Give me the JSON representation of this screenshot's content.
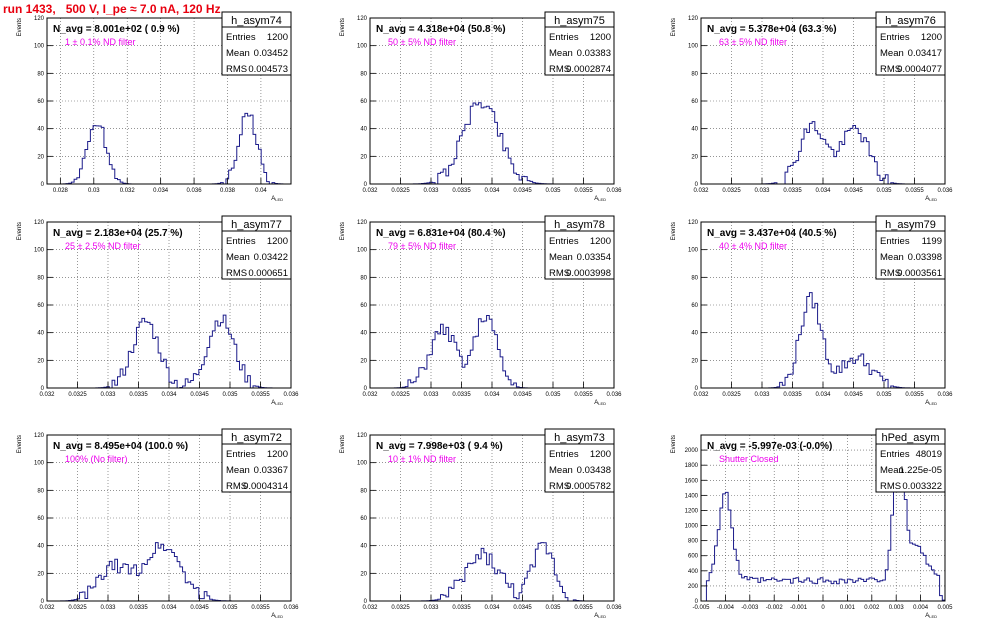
{
  "page_title": "run 1433,   500 V, I_pe ≈ 7.0 nA, 120 Hz",
  "colors": {
    "title": "#e8000f",
    "histogram": "#1b1b8a",
    "filter_text": "#ee00ee",
    "frame": "#000000",
    "grid": "#555555"
  },
  "y_axis_label": "Events",
  "x_axis_label": "A",
  "x_axis_label_sub": "LED",
  "stats_labels": [
    "Entries",
    "Mean",
    "RMS"
  ],
  "chart_data": [
    {
      "type": "histogram",
      "name": "h_asym74",
      "navg_text": "N_avg = 8.001e+02 ( 0.9 %)",
      "filter_text": "1 ± 0.1% ND filter",
      "stats": {
        "entries": "1200",
        "mean": "0.03452",
        "rms": "0.004573"
      },
      "xlim": [
        0.0272,
        0.0418
      ],
      "ylim": [
        0,
        120
      ],
      "xticks": [
        "0.028",
        "0.03",
        "0.032",
        "0.034",
        "0.036",
        "0.038",
        "0.04"
      ],
      "yticks": [
        "20",
        "40",
        "60",
        "80",
        "100",
        "120"
      ],
      "peaks": [
        {
          "c": 0.0302,
          "s": 0.00055,
          "a": 45
        },
        {
          "c": 0.0392,
          "s": 0.00055,
          "a": 50
        }
      ],
      "noise": 5,
      "seed": 74
    },
    {
      "type": "histogram",
      "name": "h_asym75",
      "navg_text": "N_avg = 4.318e+04 (50.8 %)",
      "filter_text": "50 ± 5% ND filter",
      "stats": {
        "entries": "1200",
        "mean": "0.03383",
        "rms": "0.0002874"
      },
      "xlim": [
        0.032,
        0.036
      ],
      "ylim": [
        0,
        120
      ],
      "xticks": [
        "0.032",
        "0.0325",
        "0.033",
        "0.0335",
        "0.034",
        "0.0345",
        "0.035",
        "0.0355",
        "0.036"
      ],
      "yticks": [
        "20",
        "40",
        "60",
        "80",
        "100",
        "120"
      ],
      "peaks": [
        {
          "c": 0.03383,
          "s": 0.0003,
          "a": 60
        }
      ],
      "noise": 5,
      "seed": 75
    },
    {
      "type": "histogram",
      "name": "h_asym76",
      "navg_text": "N_avg = 5.378e+04 (63.3 %)",
      "filter_text": "63 ± 5% ND filter",
      "stats": {
        "entries": "1200",
        "mean": "0.03417",
        "rms": "0.0004077"
      },
      "xlim": [
        0.032,
        0.036
      ],
      "ylim": [
        0,
        120
      ],
      "xticks": [
        "0.032",
        "0.0325",
        "0.033",
        "0.0335",
        "0.034",
        "0.0345",
        "0.035",
        "0.0355",
        "0.036"
      ],
      "yticks": [
        "20",
        "40",
        "60",
        "80",
        "100",
        "120"
      ],
      "peaks": [
        {
          "c": 0.03383,
          "s": 0.00022,
          "a": 42
        },
        {
          "c": 0.03453,
          "s": 0.00022,
          "a": 40
        }
      ],
      "noise": 5,
      "seed": 76
    },
    {
      "type": "histogram",
      "name": "h_asym77",
      "navg_text": "N_avg = 2.183e+04 (25.7 %)",
      "filter_text": "25 ± 2.5% ND filter",
      "stats": {
        "entries": "1200",
        "mean": "0.03422",
        "rms": "0.000651"
      },
      "xlim": [
        0.032,
        0.036
      ],
      "ylim": [
        0,
        120
      ],
      "xticks": [
        "0.032",
        "0.0325",
        "0.033",
        "0.0335",
        "0.034",
        "0.0345",
        "0.035",
        "0.0355",
        "0.036"
      ],
      "yticks": [
        "20",
        "40",
        "60",
        "80",
        "100",
        "120"
      ],
      "peaks": [
        {
          "c": 0.03362,
          "s": 0.00022,
          "a": 48
        },
        {
          "c": 0.03485,
          "s": 0.00022,
          "a": 50
        }
      ],
      "noise": 5,
      "seed": 77
    },
    {
      "type": "histogram",
      "name": "h_asym78",
      "navg_text": "N_avg = 6.831e+04 (80.4 %)",
      "filter_text": "79 ± 5% ND filter",
      "stats": {
        "entries": "1200",
        "mean": "0.03354",
        "rms": "0.0003998"
      },
      "xlim": [
        0.032,
        0.036
      ],
      "ylim": [
        0,
        120
      ],
      "xticks": [
        "0.032",
        "0.0325",
        "0.033",
        "0.0335",
        "0.034",
        "0.0345",
        "0.035",
        "0.0355",
        "0.036"
      ],
      "yticks": [
        "20",
        "40",
        "60",
        "80",
        "100",
        "120"
      ],
      "peaks": [
        {
          "c": 0.0332,
          "s": 0.00022,
          "a": 42
        },
        {
          "c": 0.0339,
          "s": 0.00018,
          "a": 52
        }
      ],
      "noise": 5,
      "seed": 78
    },
    {
      "type": "histogram",
      "name": "h_asym79",
      "navg_text": "N_avg = 3.437e+04 (40.5 %)",
      "filter_text": "40 ± 4% ND filter",
      "stats": {
        "entries": "1199",
        "mean": "0.03398",
        "rms": "0.0003561"
      },
      "xlim": [
        0.032,
        0.036
      ],
      "ylim": [
        0,
        120
      ],
      "xticks": [
        "0.032",
        "0.0325",
        "0.033",
        "0.0335",
        "0.034",
        "0.0345",
        "0.035",
        "0.0355",
        "0.036"
      ],
      "yticks": [
        "20",
        "40",
        "60",
        "80",
        "100",
        "120"
      ],
      "peaks": [
        {
          "c": 0.0338,
          "s": 0.00018,
          "a": 64
        },
        {
          "c": 0.03455,
          "s": 0.00025,
          "a": 22
        }
      ],
      "noise": 5,
      "seed": 79
    },
    {
      "type": "histogram",
      "name": "h_asym72",
      "navg_text": "N_avg = 8.495e+04 (100.0 %)",
      "filter_text": "100% (No filter)",
      "stats": {
        "entries": "1200",
        "mean": "0.03367",
        "rms": "0.0004314"
      },
      "xlim": [
        0.032,
        0.036
      ],
      "ylim": [
        0,
        120
      ],
      "xticks": [
        "0.032",
        "0.0325",
        "0.033",
        "0.0335",
        "0.034",
        "0.0345",
        "0.035",
        "0.0355",
        "0.036"
      ],
      "yticks": [
        "20",
        "40",
        "60",
        "80",
        "100",
        "120"
      ],
      "peaks": [
        {
          "c": 0.0331,
          "s": 0.00025,
          "a": 24
        },
        {
          "c": 0.0339,
          "s": 0.0003,
          "a": 40
        }
      ],
      "noise": 5,
      "seed": 72
    },
    {
      "type": "histogram",
      "name": "h_asym73",
      "navg_text": "N_avg = 7.998e+03 ( 9.4 %)",
      "filter_text": "10 ± 1% ND filter",
      "stats": {
        "entries": "1200",
        "mean": "0.03438",
        "rms": "0.0005782"
      },
      "xlim": [
        0.032,
        0.036
      ],
      "ylim": [
        0,
        120
      ],
      "xticks": [
        "0.032",
        "0.0325",
        "0.033",
        "0.0335",
        "0.034",
        "0.0345",
        "0.035",
        "0.0355",
        "0.036"
      ],
      "yticks": [
        "20",
        "40",
        "60",
        "80",
        "100",
        "120"
      ],
      "peaks": [
        {
          "c": 0.03385,
          "s": 0.00028,
          "a": 33
        },
        {
          "c": 0.03485,
          "s": 0.00018,
          "a": 40
        }
      ],
      "noise": 6,
      "seed": 73
    },
    {
      "type": "histogram",
      "name": "hPed_asym",
      "navg_text": "N_avg = -5.997e-03 (-0.0%)",
      "filter_text": "Shutter Closed",
      "stats": {
        "entries": "48019",
        "mean": "1.225e-05",
        "rms": "0.003322"
      },
      "xlim": [
        -0.005,
        0.005
      ],
      "ylim": [
        0,
        2200
      ],
      "xticks": [
        "-0.005",
        "-0.004",
        "-0.003",
        "-0.002",
        "-0.001",
        "0",
        "0.001",
        "0.002",
        "0.003",
        "0.004",
        "0.005"
      ],
      "yticks": [
        "200",
        "400",
        "600",
        "800",
        "1000",
        "1200",
        "1400",
        "1600",
        "1800",
        "2000"
      ],
      "peaks": [
        {
          "c": -0.004,
          "s": 0.00028,
          "a": 1150
        },
        {
          "c": 0.0031,
          "s": 0.00022,
          "a": 1750
        },
        {
          "c": 0.0038,
          "s": 0.00045,
          "a": 450
        }
      ],
      "baseline": 270,
      "edge": 0.0048,
      "noise": 45,
      "seed": 99
    }
  ]
}
